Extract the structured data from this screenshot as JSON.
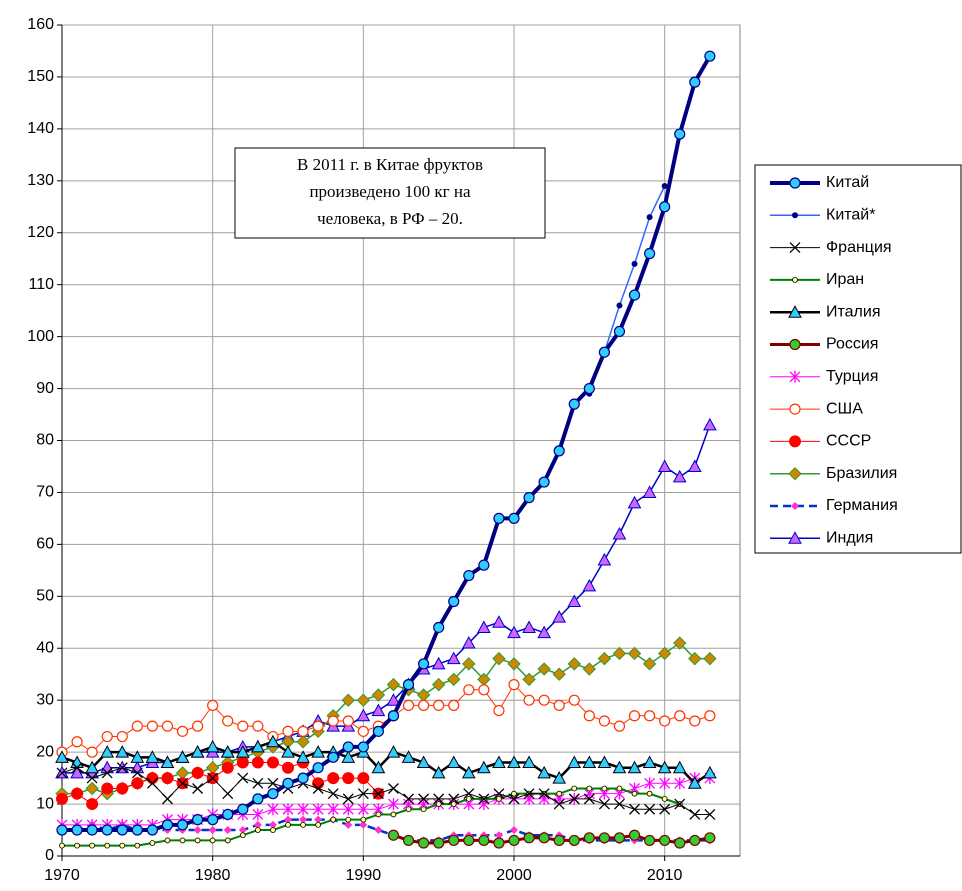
{
  "chart_data": {
    "type": "line",
    "annotation": [
      "В 2011 г. в Китае фруктов",
      "произведено 100 кг на",
      "человека, в РФ – 20."
    ],
    "x": [
      1970,
      1971,
      1972,
      1973,
      1974,
      1975,
      1976,
      1977,
      1978,
      1979,
      1980,
      1981,
      1982,
      1983,
      1984,
      1985,
      1986,
      1987,
      1988,
      1989,
      1990,
      1991,
      1992,
      1993,
      1994,
      1995,
      1996,
      1997,
      1998,
      1999,
      2000,
      2001,
      2002,
      2003,
      2004,
      2005,
      2006,
      2007,
      2008,
      2009,
      2010,
      2011,
      2012,
      2013
    ],
    "xlim": [
      1970,
      2015
    ],
    "xticks": [
      1970,
      1980,
      1990,
      2000,
      2010
    ],
    "ylim": [
      0,
      160
    ],
    "yticks": [
      0,
      10,
      20,
      30,
      40,
      50,
      60,
      70,
      80,
      90,
      100,
      110,
      120,
      130,
      140,
      150,
      160
    ],
    "grid": true,
    "legend": "right",
    "series": [
      {
        "name": "Китай",
        "color": "#000080",
        "marker": "circle",
        "marker_color": "#33ccff",
        "line_width": 4,
        "values": [
          5,
          5,
          5,
          5,
          5,
          5,
          5,
          6,
          6,
          7,
          7,
          8,
          9,
          11,
          12,
          14,
          15,
          17,
          19,
          21,
          21,
          24,
          27,
          33,
          37,
          44,
          49,
          54,
          56,
          65,
          65,
          69,
          72,
          78,
          87,
          90,
          97,
          101,
          108,
          116,
          125,
          139,
          149,
          154
        ]
      },
      {
        "name": "Китай*",
        "color": "#3366ff",
        "marker": "dot",
        "marker_color": "#000080",
        "line_width": 1.5,
        "values": [
          null,
          null,
          null,
          null,
          null,
          null,
          null,
          null,
          null,
          null,
          null,
          null,
          null,
          null,
          null,
          null,
          null,
          null,
          null,
          null,
          null,
          null,
          null,
          null,
          null,
          null,
          null,
          null,
          null,
          null,
          null,
          null,
          null,
          null,
          null,
          89,
          97,
          106,
          114,
          123,
          129,
          null,
          null,
          null
        ]
      },
      {
        "name": "Франция",
        "color": "#000000",
        "marker": "x",
        "marker_color": "#000000",
        "line_width": 1,
        "values": [
          16,
          17,
          15,
          16,
          17,
          16,
          14,
          11,
          14,
          13,
          15,
          12,
          15,
          14,
          14,
          13,
          14,
          13,
          12,
          11,
          12,
          12,
          13,
          11,
          11,
          11,
          11,
          12,
          11,
          12,
          11,
          12,
          12,
          10,
          11,
          11,
          10,
          10,
          9,
          9,
          9,
          10,
          8,
          8
        ]
      },
      {
        "name": "Иран",
        "color": "#008000",
        "marker": "circle-small",
        "marker_color": "#ffff99",
        "line_width": 2,
        "values": [
          2,
          2,
          2,
          2,
          2,
          2,
          2.5,
          3,
          3,
          3,
          3,
          3,
          4,
          5,
          5,
          6,
          6,
          6,
          7,
          7,
          7,
          8,
          8,
          9,
          9,
          10,
          10,
          11,
          11,
          11,
          12,
          12,
          12,
          12,
          13,
          13,
          13,
          13,
          12,
          12,
          11,
          10,
          null,
          null
        ]
      },
      {
        "name": "Италия",
        "color": "#000000",
        "marker": "triangle",
        "marker_color": "#33ccff",
        "line_width": 2.5,
        "values": [
          19,
          18,
          17,
          20,
          20,
          19,
          19,
          18,
          19,
          20,
          21,
          20,
          20,
          21,
          22,
          20,
          19,
          20,
          20,
          19,
          20,
          17,
          20,
          19,
          18,
          16,
          18,
          16,
          17,
          18,
          18,
          18,
          16,
          15,
          18,
          18,
          18,
          17,
          17,
          18,
          17,
          17,
          14,
          16
        ]
      },
      {
        "name": "Россия",
        "color": "#800000",
        "marker": "circle",
        "marker_color": "#33cc33",
        "line_width": 3,
        "values": [
          null,
          null,
          null,
          null,
          null,
          null,
          null,
          null,
          null,
          null,
          null,
          null,
          null,
          null,
          null,
          null,
          null,
          null,
          null,
          null,
          null,
          null,
          4,
          3,
          2.5,
          2.5,
          3,
          3,
          3,
          2.5,
          3,
          3.5,
          3.5,
          3,
          3,
          3.5,
          3.5,
          3.5,
          4,
          3,
          3,
          2.5,
          3,
          3.5
        ]
      },
      {
        "name": "Турция",
        "color": "#ff00ff",
        "marker": "asterisk",
        "marker_color": "#ff00ff",
        "line_width": 1,
        "values": [
          6,
          6,
          6,
          6,
          6,
          6,
          6,
          7,
          7,
          7,
          8,
          8,
          8,
          8,
          9,
          9,
          9,
          9,
          9,
          9,
          9,
          9,
          10,
          10,
          10,
          10,
          10,
          10,
          10,
          11,
          11,
          11,
          11,
          11,
          11,
          12,
          12,
          12,
          13,
          14,
          14,
          14,
          15,
          15
        ]
      },
      {
        "name": "США",
        "color": "#ff3300",
        "marker": "circle-open",
        "marker_color": "#ffffff",
        "line_width": 1,
        "values": [
          20,
          22,
          20,
          23,
          23,
          25,
          25,
          25,
          24,
          25,
          29,
          26,
          25,
          25,
          23,
          24,
          24,
          25,
          26,
          26,
          24,
          25,
          27,
          29,
          29,
          29,
          29,
          32,
          32,
          28,
          33,
          30,
          30,
          29,
          30,
          27,
          26,
          25,
          27,
          27,
          26,
          27,
          26,
          27
        ]
      },
      {
        "name": "СССР",
        "color": "#ff0000",
        "marker": "circle-filled",
        "marker_color": "#ff0000",
        "line_width": 1,
        "values": [
          11,
          12,
          10,
          13,
          13,
          14,
          15,
          15,
          14,
          16,
          15,
          17,
          18,
          18,
          18,
          17,
          18,
          14,
          15,
          15,
          15,
          12,
          null,
          null,
          null,
          null,
          null,
          null,
          null,
          null,
          null,
          null,
          null,
          null,
          null,
          null,
          null,
          null,
          null,
          null,
          null,
          null,
          null,
          null
        ]
      },
      {
        "name": "Бразилия",
        "color": "#339933",
        "marker": "diamond",
        "marker_color": "#cc8800",
        "line_width": 1.5,
        "values": [
          12,
          12,
          13,
          12,
          13,
          14,
          15,
          15,
          16,
          16,
          17,
          18,
          19,
          20,
          21,
          22,
          22,
          24,
          27,
          30,
          30,
          31,
          33,
          32,
          31,
          33,
          34,
          37,
          34,
          38,
          37,
          34,
          36,
          35,
          37,
          36,
          38,
          39,
          39,
          37,
          39,
          41,
          38,
          38
        ]
      },
      {
        "name": "Германия",
        "color": "#0033cc",
        "marker": "diamond-small",
        "marker_color": "#ff33cc",
        "line_width": 2.5,
        "dashed": true,
        "values": [
          5,
          5,
          6,
          5,
          6,
          5,
          5,
          5,
          5,
          5,
          5,
          5,
          5,
          6,
          6,
          7,
          7,
          7,
          7,
          6,
          6,
          5,
          4,
          3,
          3,
          3,
          4,
          4,
          4,
          4,
          5,
          4,
          4,
          4,
          3,
          3,
          3,
          3,
          3,
          3,
          3,
          3,
          3,
          3
        ]
      },
      {
        "name": "Индия",
        "color": "#0000cc",
        "marker": "triangle",
        "marker_color": "#cc66ff",
        "line_width": 1.5,
        "values": [
          16,
          16,
          16,
          17,
          17,
          17,
          18,
          18,
          19,
          20,
          20,
          20,
          21,
          21,
          22,
          23,
          24,
          26,
          25,
          25,
          27,
          28,
          30,
          33,
          36,
          37,
          38,
          41,
          44,
          45,
          43,
          44,
          43,
          46,
          49,
          52,
          57,
          62,
          68,
          70,
          75,
          73,
          75,
          83
        ]
      }
    ]
  }
}
